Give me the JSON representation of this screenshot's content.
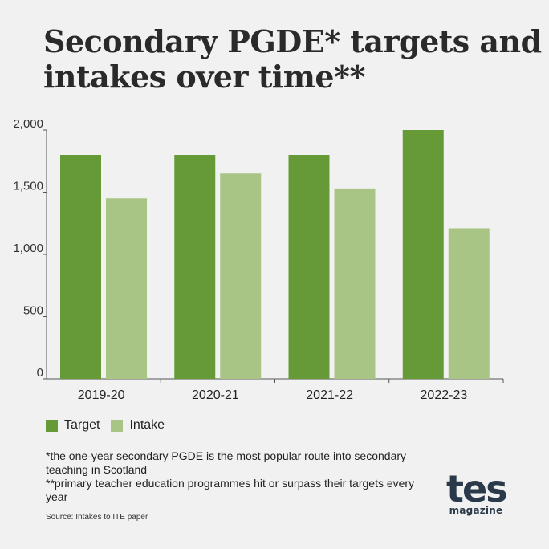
{
  "title_lines": [
    "Secondary PGDE* targets and",
    "intakes over time**"
  ],
  "chart_data": {
    "type": "bar",
    "categories": [
      "2019-20",
      "2020-21",
      "2021-22",
      "2022-23"
    ],
    "series": [
      {
        "name": "Target",
        "values": [
          1800,
          1800,
          1800,
          2000
        ],
        "color": "#659a37"
      },
      {
        "name": "Intake",
        "values": [
          1450,
          1650,
          1530,
          1210
        ],
        "color": "#a8c585"
      }
    ],
    "yticks": [
      "0",
      "500",
      "1,000",
      "1,500",
      "2,000"
    ],
    "ytick_values": [
      0,
      500,
      1000,
      1500,
      2000
    ],
    "ylim": [
      0,
      2000
    ],
    "grid": false,
    "legend_position": "bottom-left"
  },
  "notes": [
    "*the one-year secondary PGDE is the most popular route into secondary teaching in Scotland",
    "**primary teacher education programmes hit or surpass their targets every year"
  ],
  "source": "Source: Intakes to ITE paper",
  "logo": {
    "word": "tes",
    "sub": "magazine"
  }
}
